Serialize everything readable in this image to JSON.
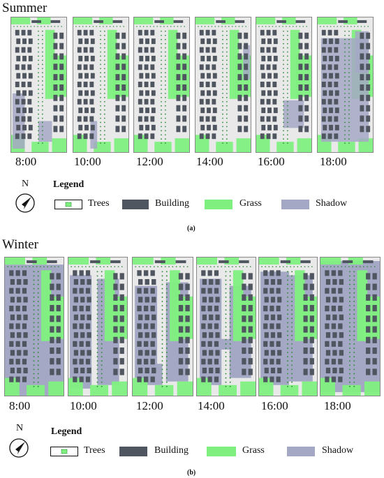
{
  "summer": {
    "title": "Summer",
    "times": [
      "8:00",
      "10:00",
      "12:00",
      "14:00",
      "16:00",
      "18:00"
    ],
    "caption": "(a)"
  },
  "winter": {
    "title": "Winter",
    "times": [
      "8:00",
      "10:00",
      "12:00",
      "14:00",
      "16:00",
      "18:00"
    ],
    "caption": "(b)"
  },
  "legend": {
    "title": "Legend",
    "north": "N",
    "trees": "Trees",
    "building": "Building",
    "grass": "Grass",
    "shadow": "Shadow"
  },
  "colors": {
    "building": "#4f5660",
    "grass": "#7ff07f",
    "shadow": "#a4a8c4",
    "ground": "#e9e9e9",
    "tree": "#2e8b3a"
  }
}
